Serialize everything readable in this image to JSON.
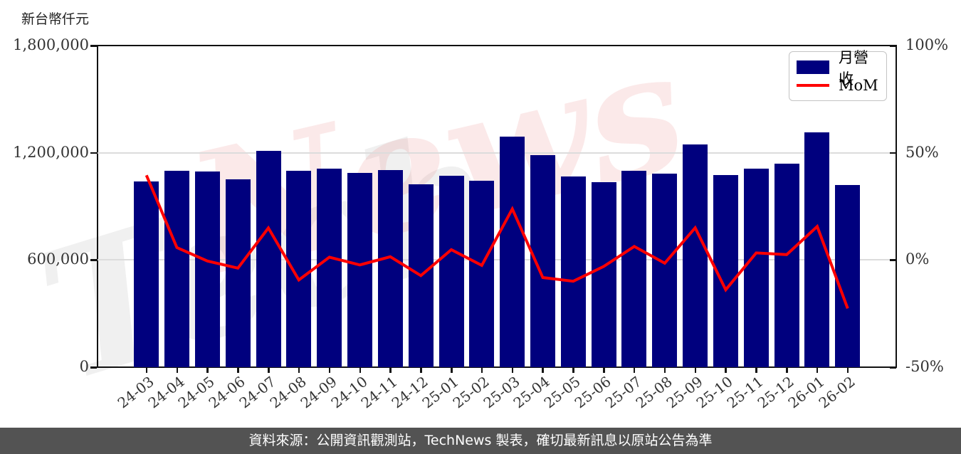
{
  "header": {
    "unit_label": "新台幣仟元"
  },
  "chart_data": {
    "type": "bar",
    "subtype": "bar-with-line-overlay",
    "title": "",
    "categories": [
      "24-03",
      "24-04",
      "24-05",
      "24-06",
      "24-07",
      "24-08",
      "24-09",
      "24-10",
      "24-11",
      "24-12",
      "25-01",
      "25-02",
      "25-03",
      "25-04",
      "25-05",
      "25-06",
      "25-07",
      "25-08",
      "25-09",
      "25-10",
      "25-11",
      "25-12",
      "26-01",
      "26-02"
    ],
    "series": [
      {
        "name": "月營收",
        "type": "bar",
        "color": "#00007E",
        "yaxis": "left",
        "values": [
          1040000,
          1100000,
          1095000,
          1053000,
          1210000,
          1098000,
          1112000,
          1086000,
          1102000,
          1022000,
          1071000,
          1044000,
          1292000,
          1186000,
          1068000,
          1036000,
          1101000,
          1085000,
          1248000,
          1075000,
          1110000,
          1138000,
          1315000,
          1018000
        ]
      },
      {
        "name": "MoM",
        "type": "line",
        "color": "#FF0000",
        "yaxis": "right",
        "values": [
          39.5,
          5.8,
          -0.5,
          -3.8,
          14.9,
          -9.3,
          1.3,
          -2.3,
          1.5,
          -7.3,
          4.8,
          -2.5,
          23.8,
          -8.2,
          -9.9,
          -3.0,
          6.3,
          -1.5,
          15.0,
          -13.9,
          3.3,
          2.5,
          15.6,
          -22.6
        ]
      }
    ],
    "left_axis": {
      "label": "新台幣仟元",
      "min": 0,
      "max": 1800000,
      "tick_labels": [
        "1,800,000",
        "1,200,000",
        "600,000",
        "0"
      ]
    },
    "right_axis": {
      "min": -50,
      "max": 100,
      "unit": "%",
      "tick_labels": [
        "100%",
        "50%",
        "0%",
        "-50%"
      ]
    },
    "legend": {
      "position": "top-right",
      "entries": [
        "月營收",
        "MoM"
      ]
    },
    "grid": "horizontal",
    "watermark": {
      "text": "TechNews",
      "pink_part": "News",
      "gray_part": "Tech"
    }
  },
  "footer": {
    "source_text": "資料來源：公開資訊觀測站，TechNews 製表，確切最新訊息以原站公告為準"
  }
}
